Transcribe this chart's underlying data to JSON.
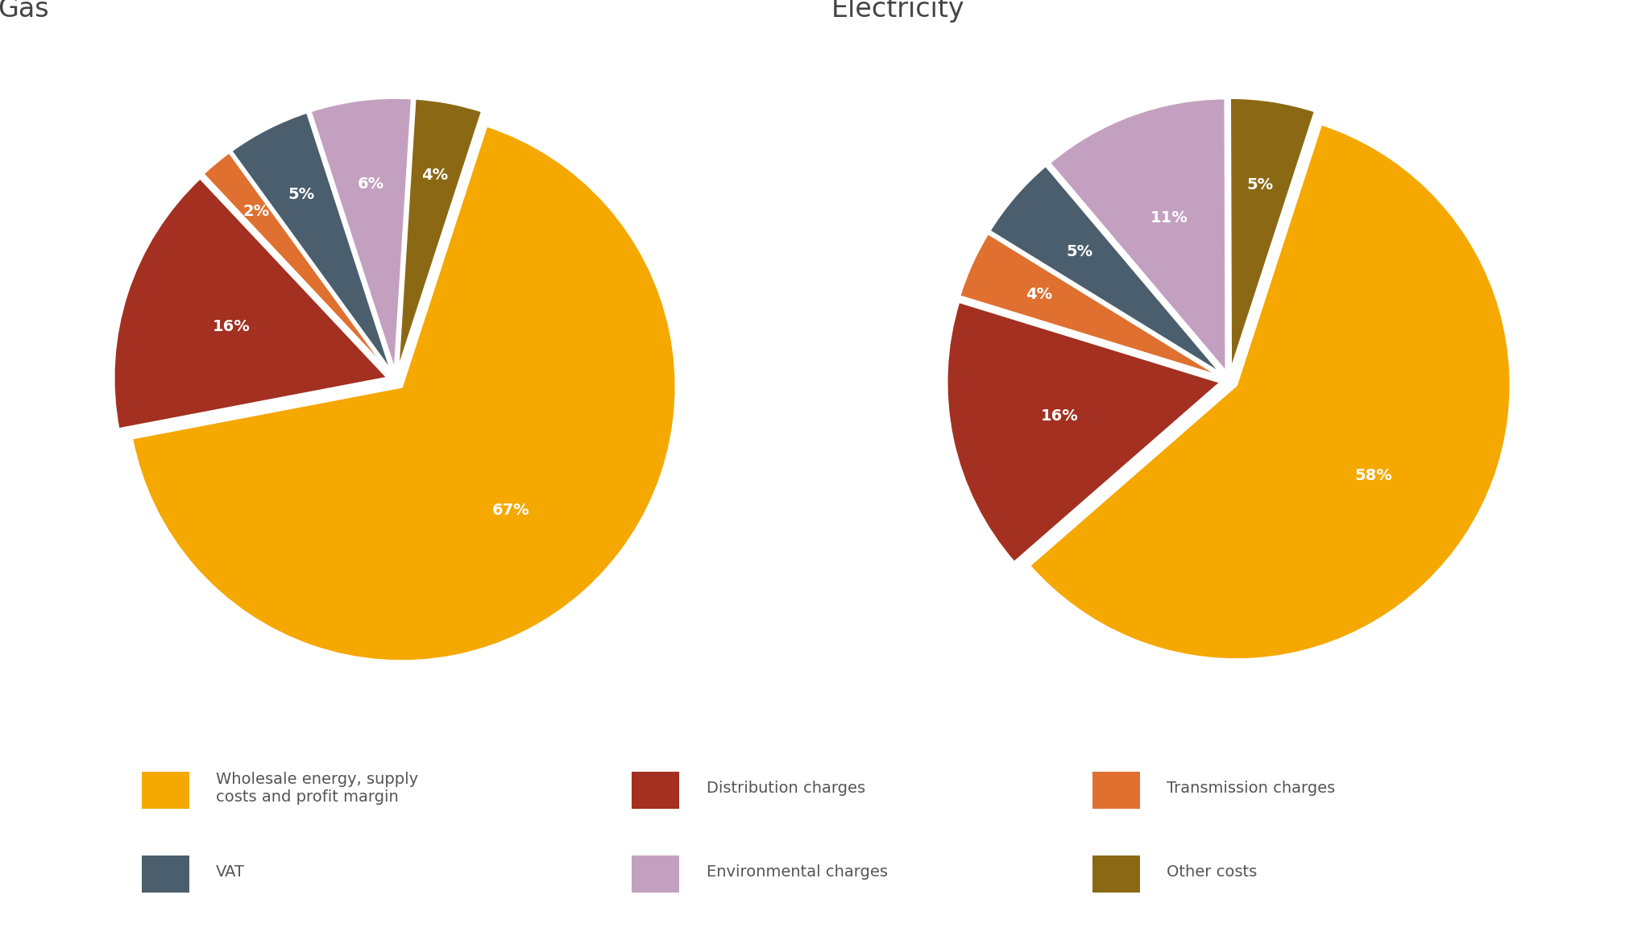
{
  "gas": {
    "title": "Gas",
    "values_ordered": [
      67,
      16,
      2,
      5,
      6,
      4
    ],
    "labels_ordered": [
      "67%",
      "16%",
      "2%",
      "5%",
      "6%",
      "4%"
    ],
    "colors_ordered": [
      "#F5A800",
      "#A33020",
      "#E07030",
      "#4A5E6E",
      "#C4A0C0",
      "#8B6914"
    ],
    "startangle": 72
  },
  "electricity": {
    "title": "Electricity",
    "values_ordered": [
      58,
      16,
      4,
      5,
      11,
      5
    ],
    "labels_ordered": [
      "58%",
      "16%",
      "4%",
      "5%",
      "11%",
      "5%"
    ],
    "colors_ordered": [
      "#F5A800",
      "#A33020",
      "#E07030",
      "#4A5E6E",
      "#C4A0C0",
      "#8B6914"
    ],
    "startangle": 72
  },
  "legend": [
    {
      "label": "Wholesale energy, supply\ncosts and profit margin",
      "color": "#F5A800"
    },
    {
      "label": "Distribution charges",
      "color": "#A33020"
    },
    {
      "label": "Transmission charges",
      "color": "#E07030"
    },
    {
      "label": "VAT",
      "color": "#4A5E6E"
    },
    {
      "label": "Environmental charges",
      "color": "#C4A0C0"
    },
    {
      "label": "Other costs",
      "color": "#8B6914"
    }
  ],
  "background_color": "#FFFFFF",
  "title_fontsize": 24,
  "label_fontsize": 14,
  "legend_fontsize": 14
}
